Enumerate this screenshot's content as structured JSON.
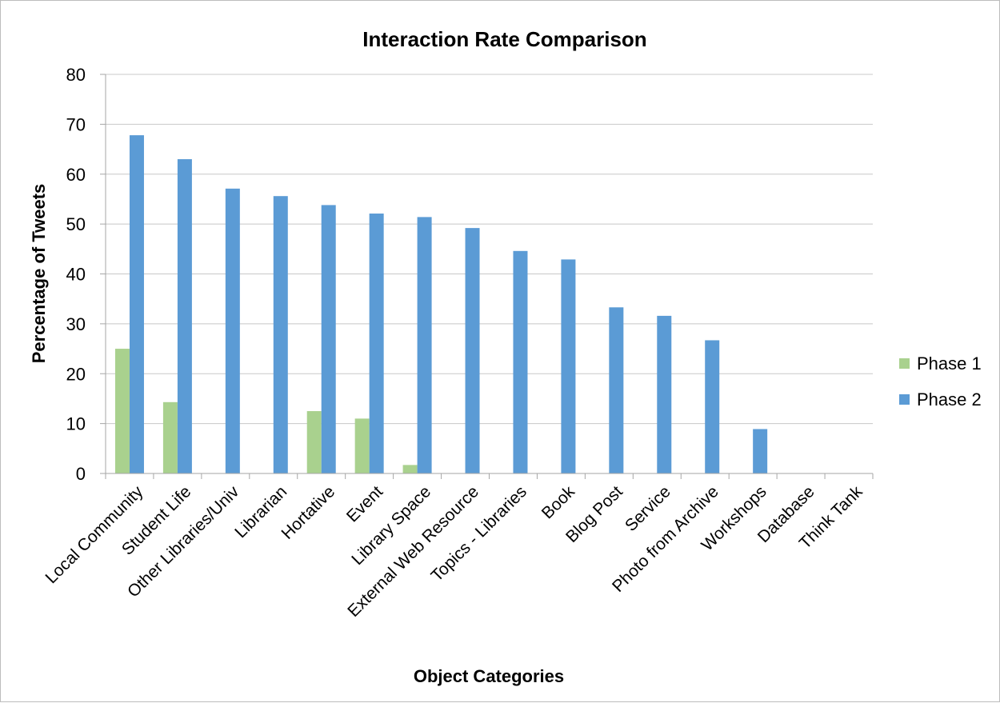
{
  "chart_data": {
    "type": "bar",
    "title": "Interaction Rate Comparison",
    "xlabel": "Object Categories",
    "ylabel": "Percentage of Tweets",
    "ylim": [
      0,
      80
    ],
    "yticks": [
      0,
      10,
      20,
      30,
      40,
      50,
      60,
      70,
      80
    ],
    "grid": true,
    "legend_position": "right",
    "categories": [
      "Local Community",
      "Student Life",
      "Other Libraries/Univ",
      "Librarian",
      "Hortative",
      "Event",
      "Library Space",
      "External Web Resource",
      "Topics - Libraries",
      "Book",
      "Blog Post",
      "Service",
      "Photo from Archive",
      "Workshops",
      "Database",
      "Think Tank"
    ],
    "series": [
      {
        "name": "Phase 1",
        "color": "#a9d18e",
        "values": [
          25,
          14.3,
          0,
          0,
          12.5,
          11,
          1.7,
          0,
          0,
          0,
          0,
          0,
          0,
          0,
          0,
          0
        ]
      },
      {
        "name": "Phase 2",
        "color": "#5b9bd5",
        "values": [
          67.8,
          63,
          57.1,
          55.6,
          53.8,
          52.1,
          51.4,
          49.2,
          44.6,
          42.9,
          33.3,
          31.6,
          26.7,
          8.9,
          0,
          0
        ]
      }
    ]
  }
}
